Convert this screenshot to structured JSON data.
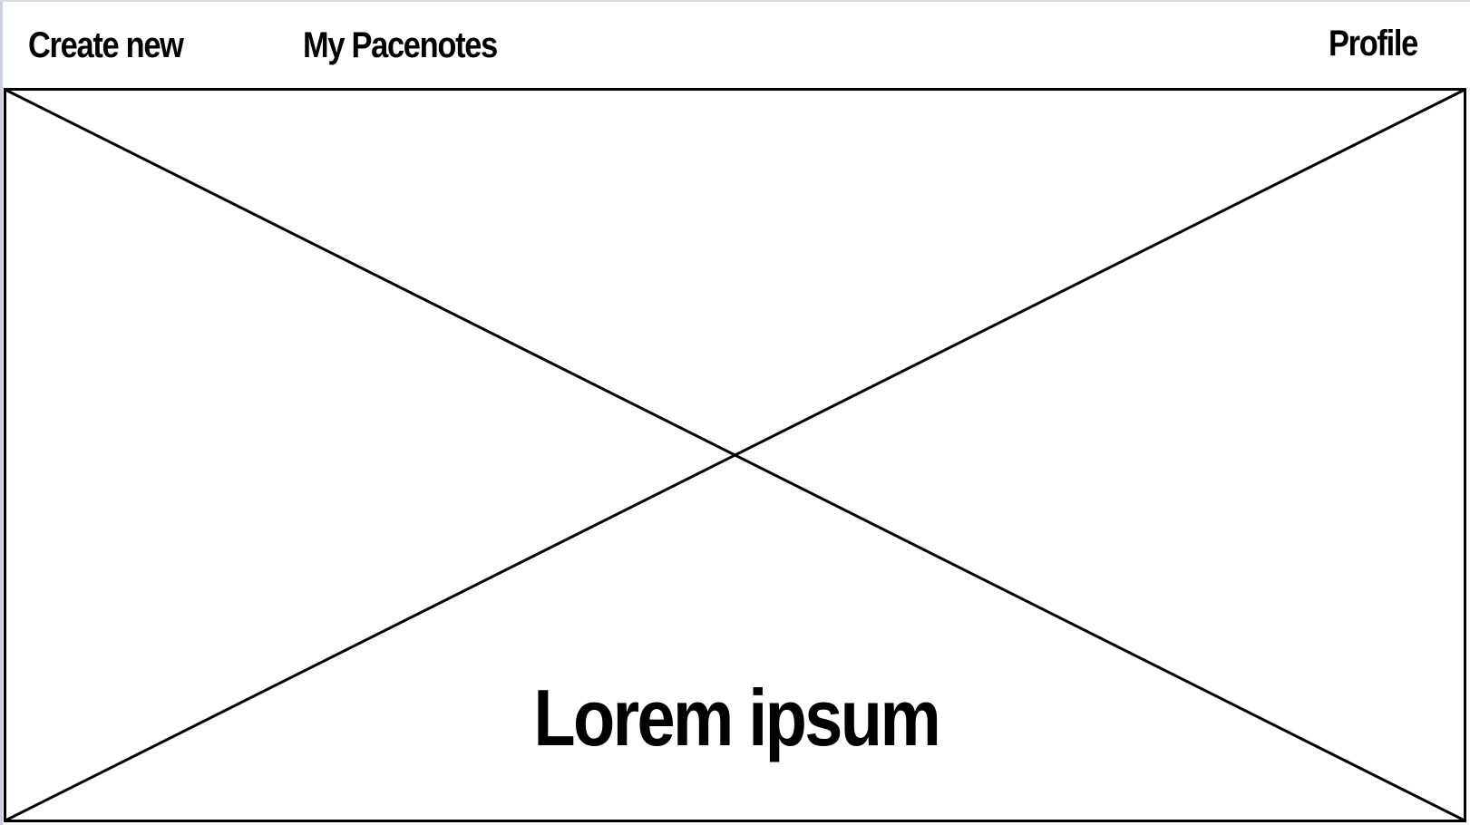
{
  "nav": {
    "create_new": "Create new",
    "my_pacenotes": "My Pacenotes",
    "profile": "Profile"
  },
  "hero": {
    "title": "Lorem ipsum",
    "placeholder_icon": "image-placeholder-icon"
  },
  "colors": {
    "stroke": "#000000",
    "background": "#ffffff",
    "page_edge": "#c9d0e0"
  }
}
